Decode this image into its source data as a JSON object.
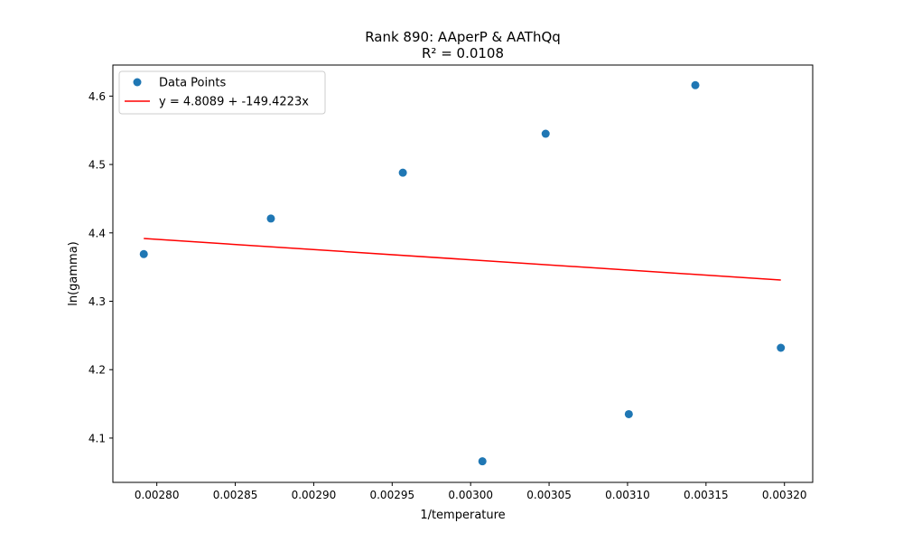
{
  "chart_data": {
    "type": "scatter",
    "title": "Rank 890: AAperP & AAThQq",
    "subtitle": "R² = 0.0108",
    "xlabel": "1/temperature",
    "ylabel": "ln(gamma)",
    "xlim": [
      0.002772,
      0.003218
    ],
    "ylim": [
      4.0352,
      4.6454
    ],
    "xticks": [
      0.0028,
      0.00285,
      0.0029,
      0.00295,
      0.003,
      0.00305,
      0.0031,
      0.00315,
      0.0032
    ],
    "xtick_labels": [
      "0.00280",
      "0.00285",
      "0.00290",
      "0.00295",
      "0.00300",
      "0.00305",
      "0.00310",
      "0.00315",
      "0.00320"
    ],
    "yticks": [
      4.1,
      4.2,
      4.3,
      4.4,
      4.5,
      4.6
    ],
    "ytick_labels": [
      "4.1",
      "4.2",
      "4.3",
      "4.4",
      "4.5",
      "4.6"
    ],
    "grid": false,
    "legend_position": "top-left",
    "series": [
      {
        "name": "Data Points",
        "kind": "scatter",
        "color": "#1f77b4",
        "x": [
          0.0027917,
          0.0028727,
          0.0029568,
          0.0030075,
          0.0030478,
          0.0031008,
          0.0031432,
          0.0031977
        ],
        "y": [
          4.369,
          4.421,
          4.488,
          4.066,
          4.545,
          4.135,
          4.616,
          4.232
        ]
      },
      {
        "name": "y = 4.8089 + -149.4223x",
        "kind": "line",
        "color": "#ff0000",
        "intercept": 4.8089,
        "slope": -149.4223,
        "x_range": [
          0.0027917,
          0.0031977
        ]
      }
    ]
  }
}
